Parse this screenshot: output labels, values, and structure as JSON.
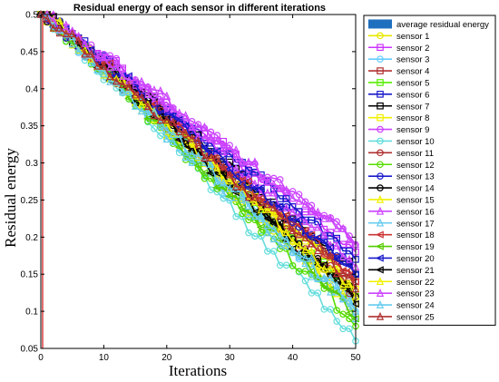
{
  "chart_data": {
    "type": "line",
    "title": "Residual energy of each sensor in different iterations",
    "xlabel": "Iterations",
    "ylabel": "Residual energy",
    "xlim": [
      0,
      50
    ],
    "ylim": [
      0.05,
      0.5
    ],
    "x_ticks": [
      0,
      10,
      20,
      30,
      40,
      50
    ],
    "y_ticks": [
      0.05,
      0.1,
      0.15,
      0.2,
      0.25,
      0.3,
      0.35,
      0.4,
      0.45,
      0.5
    ],
    "x_tick_labels": [
      "0",
      "10",
      "20",
      "30",
      "40",
      "50"
    ],
    "y_tick_labels": [
      "0.05",
      "0.1",
      "0.15",
      "0.2",
      "0.25",
      "0.3",
      "0.35",
      "0.4",
      "0.45",
      "0.5"
    ],
    "grid": false,
    "legend_position": "outside-right",
    "iterations": 50,
    "average_series": {
      "name": "average residual energy",
      "color": "#1f6fbf",
      "start": 0.5,
      "end": 0.13
    },
    "series": [
      {
        "name": "sensor 1",
        "color": "#e8e800",
        "marker": "circle",
        "start": 0.5,
        "end": 0.11
      },
      {
        "name": "sensor 2",
        "color": "#cc33ff",
        "marker": "square",
        "start": 0.5,
        "end": 0.18
      },
      {
        "name": "sensor 3",
        "color": "#66ccff",
        "marker": "circle",
        "start": 0.5,
        "end": 0.1
      },
      {
        "name": "sensor 4",
        "color": "#b03030",
        "marker": "square",
        "start": 0.5,
        "end": 0.14
      },
      {
        "name": "sensor 5",
        "color": "#55ee00",
        "marker": "square",
        "start": 0.5,
        "end": 0.12
      },
      {
        "name": "sensor 6",
        "color": "#1a1acc",
        "marker": "square",
        "start": 0.5,
        "end": 0.17
      },
      {
        "name": "sensor 7",
        "color": "#000000",
        "marker": "square",
        "start": 0.5,
        "end": 0.15
      },
      {
        "name": "sensor 8",
        "color": "#f0f000",
        "marker": "square",
        "start": 0.5,
        "end": 0.13
      },
      {
        "name": "sensor 9",
        "color": "#cc44ff",
        "marker": "circle",
        "start": 0.5,
        "end": 0.19
      },
      {
        "name": "sensor 10",
        "color": "#66dddd",
        "marker": "circle",
        "start": 0.5,
        "end": 0.06
      },
      {
        "name": "sensor 11",
        "color": "#b03030",
        "marker": "circle",
        "start": 0.5,
        "end": 0.12
      },
      {
        "name": "sensor 12",
        "color": "#55dd00",
        "marker": "circle",
        "start": 0.5,
        "end": 0.08
      },
      {
        "name": "sensor 13",
        "color": "#1a1acc",
        "marker": "circle",
        "start": 0.5,
        "end": 0.15
      },
      {
        "name": "sensor 14",
        "color": "#000000",
        "marker": "circle",
        "start": 0.5,
        "end": 0.12
      },
      {
        "name": "sensor 15",
        "color": "#f0f000",
        "marker": "triangle",
        "start": 0.5,
        "end": 0.1
      },
      {
        "name": "sensor 16",
        "color": "#cc44ff",
        "marker": "triangle",
        "start": 0.5,
        "end": 0.16
      },
      {
        "name": "sensor 17",
        "color": "#66ccee",
        "marker": "triangle",
        "start": 0.5,
        "end": 0.09
      },
      {
        "name": "sensor 18",
        "color": "#cc3333",
        "marker": "left",
        "start": 0.5,
        "end": 0.14
      },
      {
        "name": "sensor 19",
        "color": "#55cc00",
        "marker": "left",
        "start": 0.5,
        "end": 0.09
      },
      {
        "name": "sensor 20",
        "color": "#1a1acc",
        "marker": "left",
        "start": 0.5,
        "end": 0.15
      },
      {
        "name": "sensor 21",
        "color": "#000000",
        "marker": "left",
        "start": 0.5,
        "end": 0.11
      },
      {
        "name": "sensor 22",
        "color": "#f0f000",
        "marker": "triangle",
        "start": 0.5,
        "end": 0.12
      },
      {
        "name": "sensor 23",
        "color": "#cc44ff",
        "marker": "triangle",
        "start": 0.5,
        "end": 0.19
      },
      {
        "name": "sensor 24",
        "color": "#66ccee",
        "marker": "triangle",
        "start": 0.5,
        "end": 0.1
      },
      {
        "name": "sensor 25",
        "color": "#b03030",
        "marker": "triangle",
        "start": 0.5,
        "end": 0.13
      }
    ]
  }
}
